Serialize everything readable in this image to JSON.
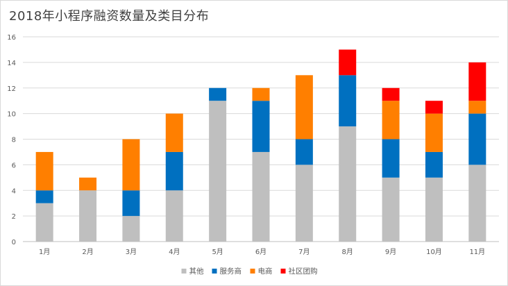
{
  "chart_data": {
    "type": "bar",
    "stacked": true,
    "title": "2018年小程序融资数量及类目分布",
    "xlabel": "",
    "ylabel": "",
    "ylim": [
      0,
      16
    ],
    "yticks": [
      0,
      2,
      4,
      6,
      8,
      10,
      12,
      14,
      16
    ],
    "grid": true,
    "legend_position": "bottom",
    "categories": [
      "1月",
      "2月",
      "3月",
      "4月",
      "5月",
      "6月",
      "7月",
      "8月",
      "9月",
      "10月",
      "11月"
    ],
    "series": [
      {
        "name": "其他",
        "color": "#bfbfbf",
        "values": [
          3,
          4,
          2,
          4,
          11,
          7,
          6,
          9,
          5,
          5,
          6
        ]
      },
      {
        "name": "服务商",
        "color": "#0070c0",
        "values": [
          1,
          0,
          2,
          3,
          1,
          4,
          2,
          4,
          3,
          2,
          4
        ]
      },
      {
        "name": "电商",
        "color": "#ff7f00",
        "values": [
          3,
          1,
          4,
          3,
          0,
          1,
          5,
          0,
          3,
          3,
          1
        ]
      },
      {
        "name": "社区团购",
        "color": "#ff0000",
        "values": [
          0,
          0,
          0,
          0,
          0,
          0,
          0,
          2,
          1,
          1,
          3
        ]
      }
    ]
  }
}
